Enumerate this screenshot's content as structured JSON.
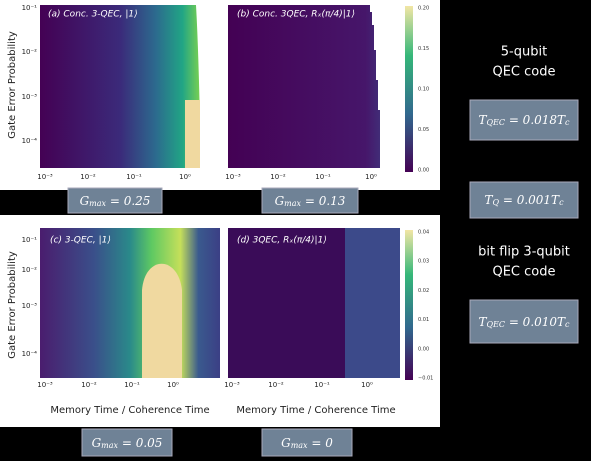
{
  "top_figure": {
    "y_axis_label": "Gate Error Probability",
    "y_ticks": [
      "10⁻¹",
      "10⁻²",
      "10⁻³",
      "10⁻⁴"
    ],
    "panels": [
      {
        "title": "(a) Conc. 3-QEC, |1⟩",
        "x_ticks": [
          "10⁻³",
          "10⁻²",
          "10⁻¹",
          "10⁰"
        ]
      },
      {
        "title": "(b) Conc. 3QEC, Rₓ(π/4)|1⟩",
        "x_ticks": [
          "10⁻³",
          "10⁻²",
          "10⁻¹",
          "10⁰"
        ]
      }
    ],
    "colorbar_ticks": [
      "0.20",
      "0.15",
      "0.10",
      "0.05",
      "0.00"
    ]
  },
  "bottom_figure": {
    "y_axis_label": "Gate Error Probability",
    "y_ticks": [
      "10⁻¹",
      "10⁻²",
      "10⁻³",
      "10⁻⁴"
    ],
    "panels": [
      {
        "title": "(c) 3-QEC, |1⟩",
        "x_ticks": [
          "10⁻³",
          "10⁻²",
          "10⁻¹",
          "10⁰"
        ],
        "x_axis_label": "Memory Time / Coherence Time"
      },
      {
        "title": "(d) 3QEC, Rₓ(π/4)|1⟩",
        "x_ticks": [
          "10⁻³",
          "10⁻²",
          "10⁻¹",
          "10⁰"
        ],
        "x_axis_label": "Memory Time / Coherence Time"
      }
    ],
    "colorbar_ticks": [
      "0.04",
      "0.03",
      "0.02",
      "0.01",
      "0.00",
      "−0.01"
    ]
  },
  "gmax_boxes": [
    {
      "main": "G",
      "sub": "max",
      "rest": " = 0.25"
    },
    {
      "main": "G",
      "sub": "max",
      "rest": " = 0.13"
    },
    {
      "main": "G",
      "sub": "max",
      "rest": " = 0.05"
    },
    {
      "main": "G",
      "sub": "max",
      "rest": " = 0"
    }
  ],
  "side": {
    "code_1": [
      "5-qubit",
      "QEC code"
    ],
    "box_1": {
      "main": "T",
      "sub": "QEC",
      "rest": " = 0.018T",
      "sub2": "c"
    },
    "box_2": {
      "main": "T",
      "sub": "Q",
      "rest": " = 0.001T",
      "sub2": "c"
    },
    "code_2": [
      "bit flip 3-qubit",
      "QEC code"
    ],
    "box_3": {
      "main": "T",
      "sub": "QEC",
      "rest": " = 0.010T",
      "sub2": "c"
    }
  }
}
